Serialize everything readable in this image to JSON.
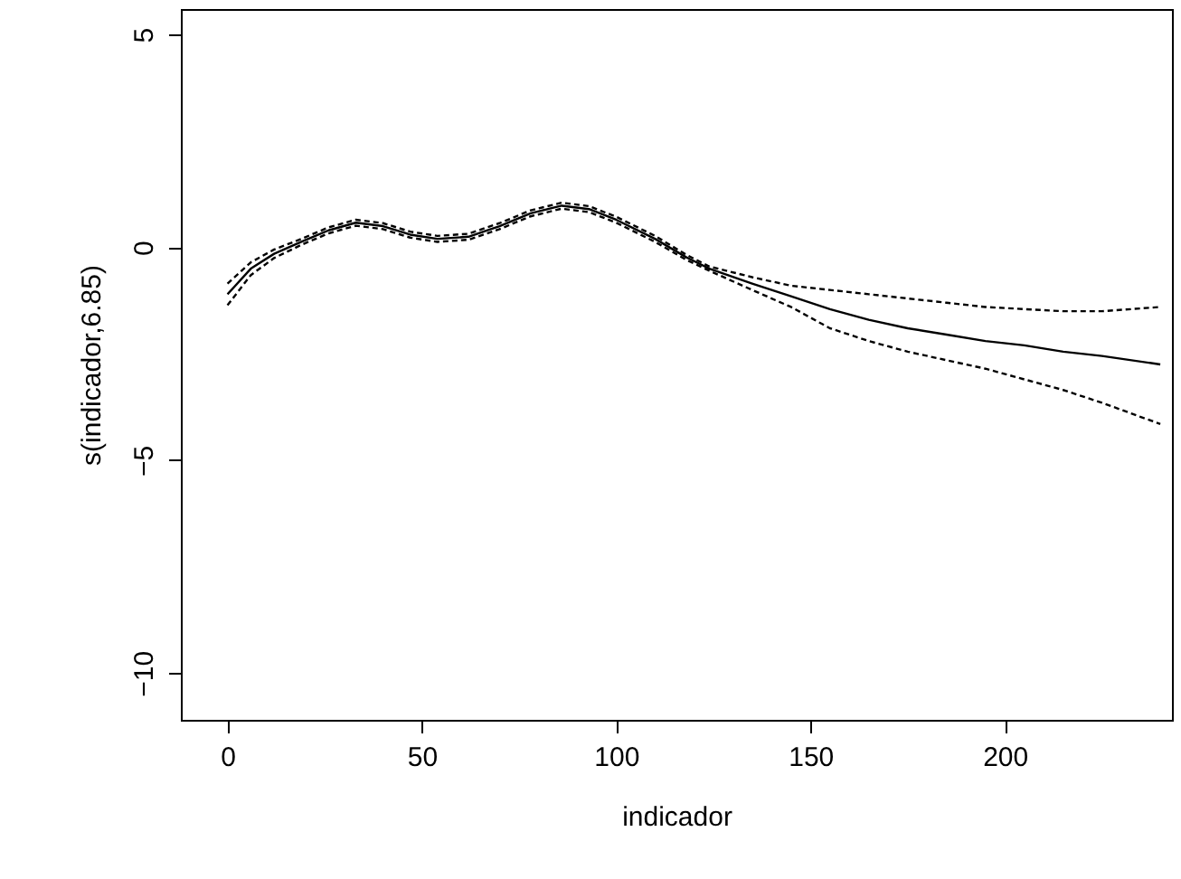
{
  "chart_data": {
    "type": "line",
    "xlabel": "indicador",
    "ylabel": "s(indicador,6.85)",
    "xlim": [
      -12,
      243
    ],
    "ylim": [
      -11.1,
      5.6
    ],
    "xticks": [
      0,
      50,
      100,
      150,
      200
    ],
    "yticks": [
      -10,
      -5,
      0,
      5
    ],
    "grid": false,
    "marker": "none",
    "x": [
      0,
      6,
      12,
      19,
      26,
      33,
      40,
      47,
      54,
      62,
      70,
      78,
      86,
      93,
      100,
      110,
      118,
      124,
      135,
      145,
      155,
      165,
      175,
      185,
      195,
      205,
      215,
      225,
      240
    ],
    "series": [
      {
        "color": "#000000",
        "line_style": "solid",
        "values": [
          -1.1,
          -0.5,
          -0.15,
          0.13,
          0.4,
          0.58,
          0.5,
          0.3,
          0.2,
          0.25,
          0.5,
          0.8,
          0.98,
          0.9,
          0.65,
          0.2,
          -0.23,
          -0.5,
          -0.85,
          -1.15,
          -1.45,
          -1.7,
          -1.9,
          -2.05,
          -2.2,
          -2.3,
          -2.45,
          -2.55,
          -2.75
        ]
      },
      {
        "color": "#000000",
        "line_style": "dashed",
        "values": [
          -0.85,
          -0.35,
          -0.05,
          0.2,
          0.47,
          0.65,
          0.57,
          0.37,
          0.27,
          0.32,
          0.57,
          0.87,
          1.05,
          0.97,
          0.72,
          0.27,
          -0.17,
          -0.45,
          -0.7,
          -0.9,
          -1.0,
          -1.1,
          -1.2,
          -1.3,
          -1.4,
          -1.45,
          -1.5,
          -1.5,
          -1.4
        ]
      },
      {
        "color": "#000000",
        "line_style": "dashed",
        "values": [
          -1.36,
          -0.65,
          -0.25,
          0.06,
          0.33,
          0.51,
          0.43,
          0.23,
          0.13,
          0.18,
          0.43,
          0.73,
          0.91,
          0.83,
          0.58,
          0.13,
          -0.29,
          -0.55,
          -1.0,
          -1.4,
          -1.9,
          -2.2,
          -2.45,
          -2.65,
          -2.85,
          -3.1,
          -3.35,
          -3.65,
          -4.15
        ]
      }
    ]
  }
}
